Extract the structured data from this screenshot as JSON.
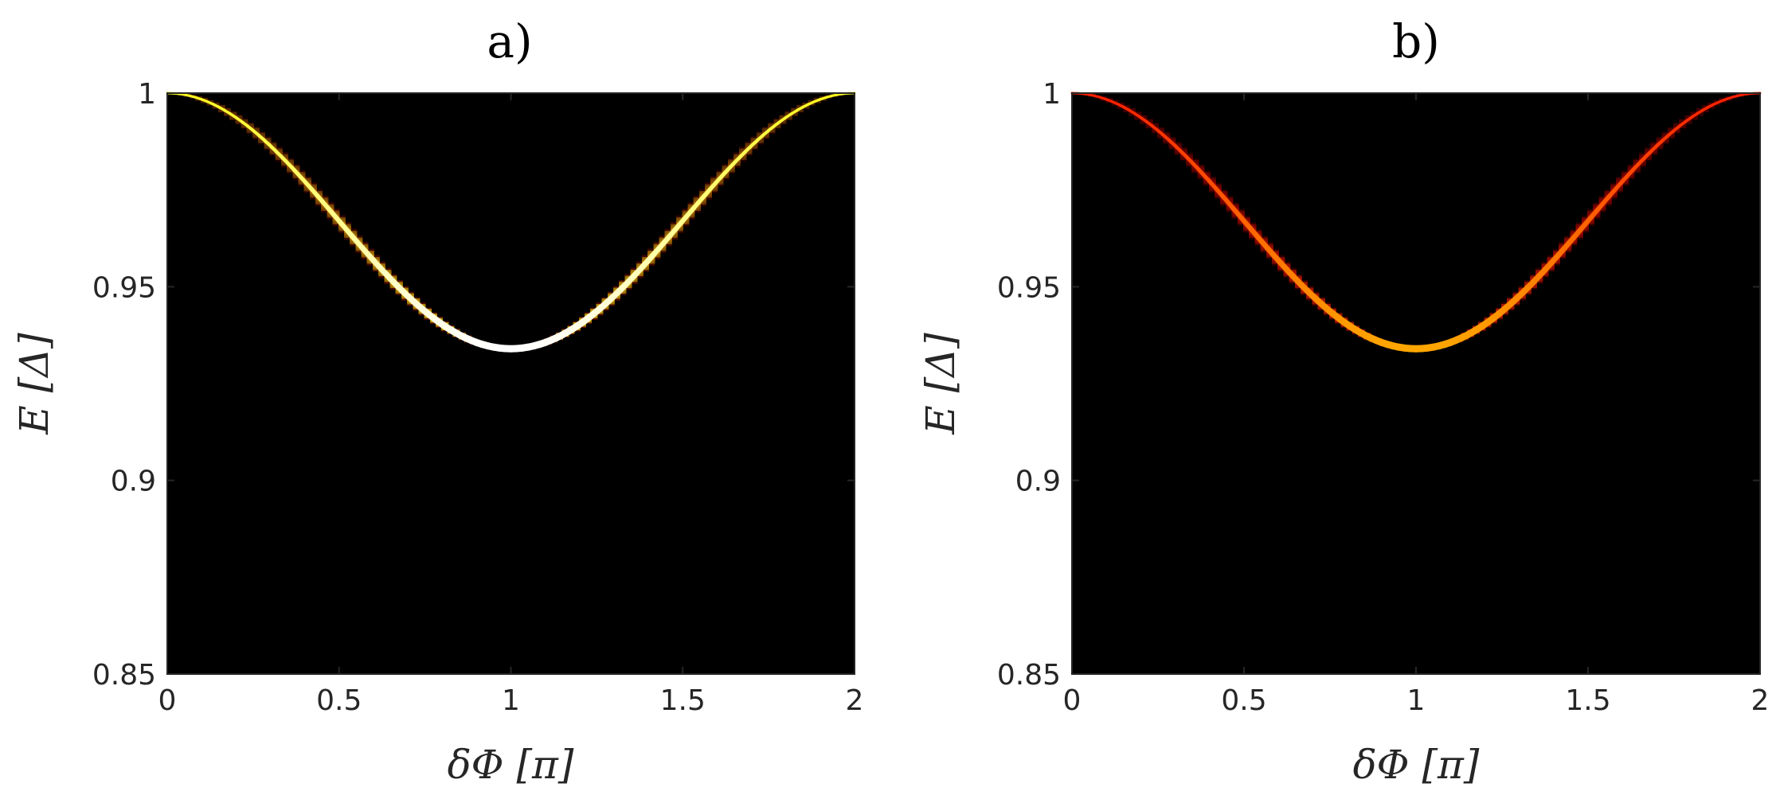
{
  "chart_data": [
    {
      "type": "heatmap",
      "title": "a)",
      "xlabel": "δΦ  [π]",
      "ylabel": "E  [Δ]",
      "xlim": [
        0,
        2
      ],
      "ylim": [
        0.85,
        1
      ],
      "xticks": [
        "0",
        "0.5",
        "1",
        "1.5",
        "2"
      ],
      "yticks": [
        "0.85",
        "0.9",
        "0.95",
        "1"
      ],
      "colormap": "hot",
      "background": "#000000",
      "curve": {
        "formula": "E = E_min + (1 - E_min) * cos^2(δΦ·π/2)",
        "e_min": 0.934,
        "e_max": 1.0
      },
      "peak_intensity": 1.0,
      "min_intensity": 0.78
    },
    {
      "type": "heatmap",
      "title": "b)",
      "xlabel": "δΦ  [π]",
      "ylabel": "E  [Δ]",
      "xlim": [
        0,
        2
      ],
      "ylim": [
        0.85,
        1
      ],
      "xticks": [
        "0",
        "0.5",
        "1",
        "1.5",
        "2"
      ],
      "yticks": [
        "0.85",
        "0.9",
        "0.95",
        "1"
      ],
      "colormap": "hot",
      "background": "#000000",
      "curve": {
        "formula": "E = E_min + (1 - E_min) * cos^2(δΦ·π/2)",
        "e_min": 0.934,
        "e_max": 1.0
      },
      "peak_intensity": 0.62,
      "min_intensity": 0.42
    }
  ]
}
